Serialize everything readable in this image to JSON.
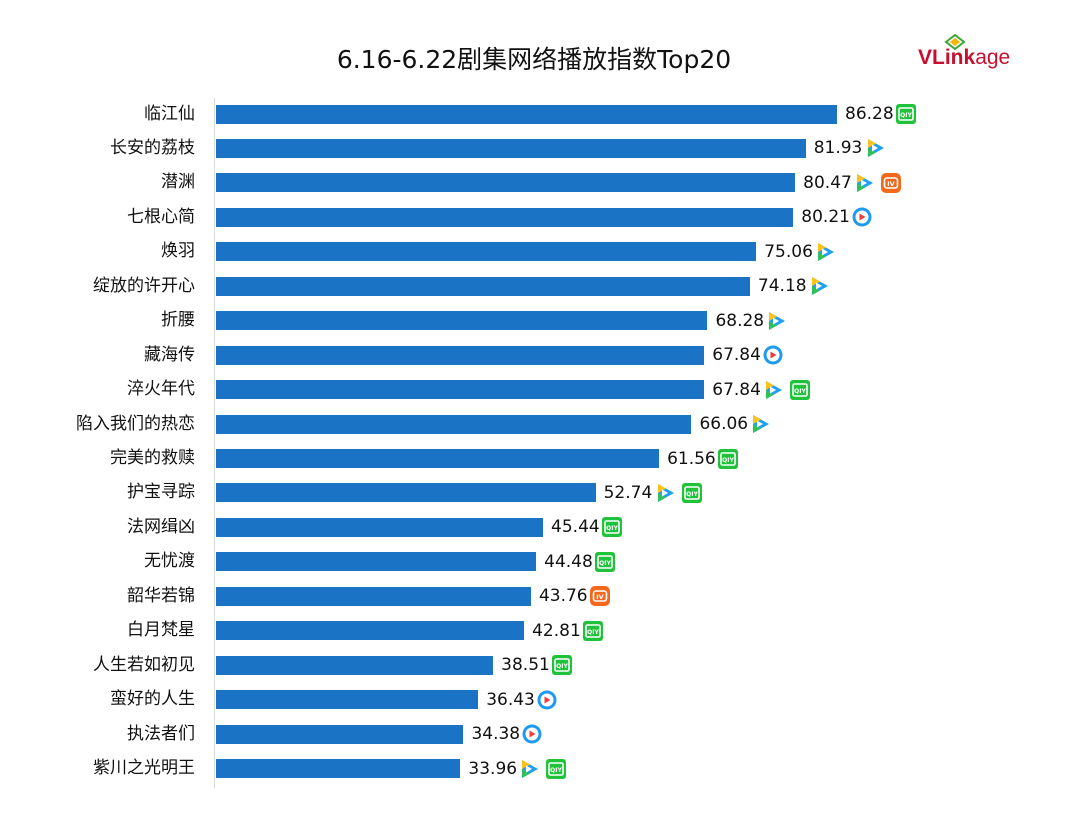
{
  "chart_data": {
    "type": "bar",
    "orientation": "horizontal",
    "title": "6.16-6.22剧集网络播放指数Top20",
    "categories": [
      "临江仙",
      "长安的荔枝",
      "潜渊",
      "七根心简",
      "焕羽",
      "绽放的许开心",
      "折腰",
      "藏海传",
      "淬火年代",
      "陷入我们的热恋",
      "完美的救赎",
      "护宝寻踪",
      "法网缉凶",
      "无忧渡",
      "韶华若锦",
      "白月梵星",
      "人生若如初见",
      "蛮好的人生",
      "执法者们",
      "紫川之光明王"
    ],
    "values": [
      86.28,
      81.93,
      80.47,
      80.21,
      75.06,
      74.18,
      68.28,
      67.84,
      67.84,
      66.06,
      61.56,
      52.74,
      45.44,
      44.48,
      43.76,
      42.81,
      38.51,
      36.43,
      34.38,
      33.96
    ],
    "value_labels": [
      "86.28",
      "81.93",
      "80.47",
      "80.21",
      "75.06",
      "74.18",
      "68.28",
      "67.84",
      "67.84",
      "66.06",
      "61.56",
      "52.74",
      "45.44",
      "44.48",
      "43.76",
      "42.81",
      "38.51",
      "36.43",
      "34.38",
      "33.96"
    ],
    "platforms": [
      [
        "iqiyi"
      ],
      [
        "tencent"
      ],
      [
        "tencent",
        "mango"
      ],
      [
        "youku"
      ],
      [
        "tencent"
      ],
      [
        "tencent"
      ],
      [
        "tencent"
      ],
      [
        "youku"
      ],
      [
        "tencent",
        "iqiyi"
      ],
      [
        "tencent"
      ],
      [
        "iqiyi"
      ],
      [
        "tencent",
        "iqiyi"
      ],
      [
        "iqiyi"
      ],
      [
        "iqiyi"
      ],
      [
        "mango"
      ],
      [
        "iqiyi"
      ],
      [
        "iqiyi"
      ],
      [
        "youku"
      ],
      [
        "youku"
      ],
      [
        "tencent",
        "iqiyi"
      ]
    ],
    "xlim": [
      0,
      100
    ],
    "grid": false,
    "bar_color": "#1a73c4",
    "xlabel": "",
    "ylabel": ""
  },
  "logo": {
    "bold": "VLink",
    "rest": "age",
    "color": "#c8102e"
  },
  "icons": {
    "iqiyi": {
      "name": "iqiyi-icon",
      "text": "QIY",
      "color": "#1fc23a"
    },
    "tencent": {
      "name": "tencent-video-icon",
      "color": "#1ea1f2"
    },
    "youku": {
      "name": "youku-icon",
      "color": "#1e9af0"
    },
    "mango": {
      "name": "mango-tv-icon",
      "text": "IV",
      "color": "#f2691e"
    }
  }
}
